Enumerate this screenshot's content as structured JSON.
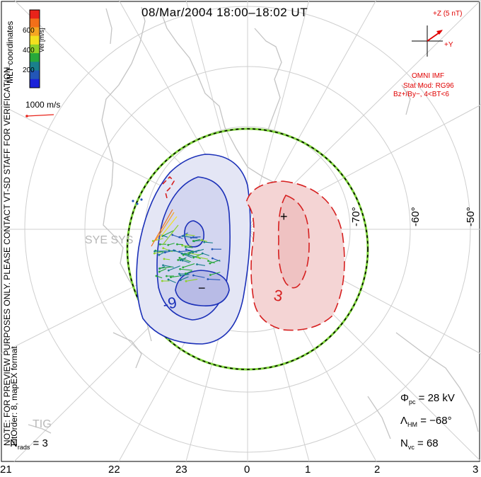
{
  "title": "08/Mar/2004  18:00–18:02  UT",
  "colorbar": {
    "label": "Vel [m/s]",
    "ticks": [
      "600",
      "400",
      "200"
    ],
    "colors": [
      "#e8231a",
      "#f26f19",
      "#f5a623",
      "#f2e01f",
      "#8fd12a",
      "#27a83a",
      "#1a7f8c",
      "#2356b7",
      "#1b22d9"
    ]
  },
  "mlt_label": "MLT coordinates",
  "scale_label": "1000 m/s",
  "imf": {
    "top": "+Z (5 nT)",
    "right": "+Y",
    "line1": "OMNI IMF",
    "line2": "Stat Mod: RG96",
    "line3": "Bz+/By−, 4<BT<6"
  },
  "side_note": "NOTE: FOR PREVIEW PURPOSES ONLY. PLEASE CONTACT VT-SD STAFF FOR VERIFICATION.",
  "fit_note": "FitOrder: 8, mapEX format",
  "lat_labels": [
    "-70°",
    "-60°",
    "-50°"
  ],
  "x_labels": [
    "21",
    "22",
    "23",
    "0",
    "1",
    "2",
    "3"
  ],
  "stations": [
    "SYE SYS",
    "TIG"
  ],
  "contour_labels": [
    "-9",
    "3"
  ],
  "markers": {
    "min": "−",
    "max": "+"
  },
  "stats": {
    "phi_pc": {
      "sym": "Φ",
      "sub": "pc",
      "value": "= 28 kV"
    },
    "lambda_hm": {
      "sym": "Λ",
      "sub": "HM",
      "value": "= −68°"
    },
    "n_vc": {
      "sym": "N",
      "sub": "vc",
      "value": "= 68"
    },
    "n_rads": {
      "sym": "N",
      "sub": "rads",
      "value": "= 3"
    }
  }
}
